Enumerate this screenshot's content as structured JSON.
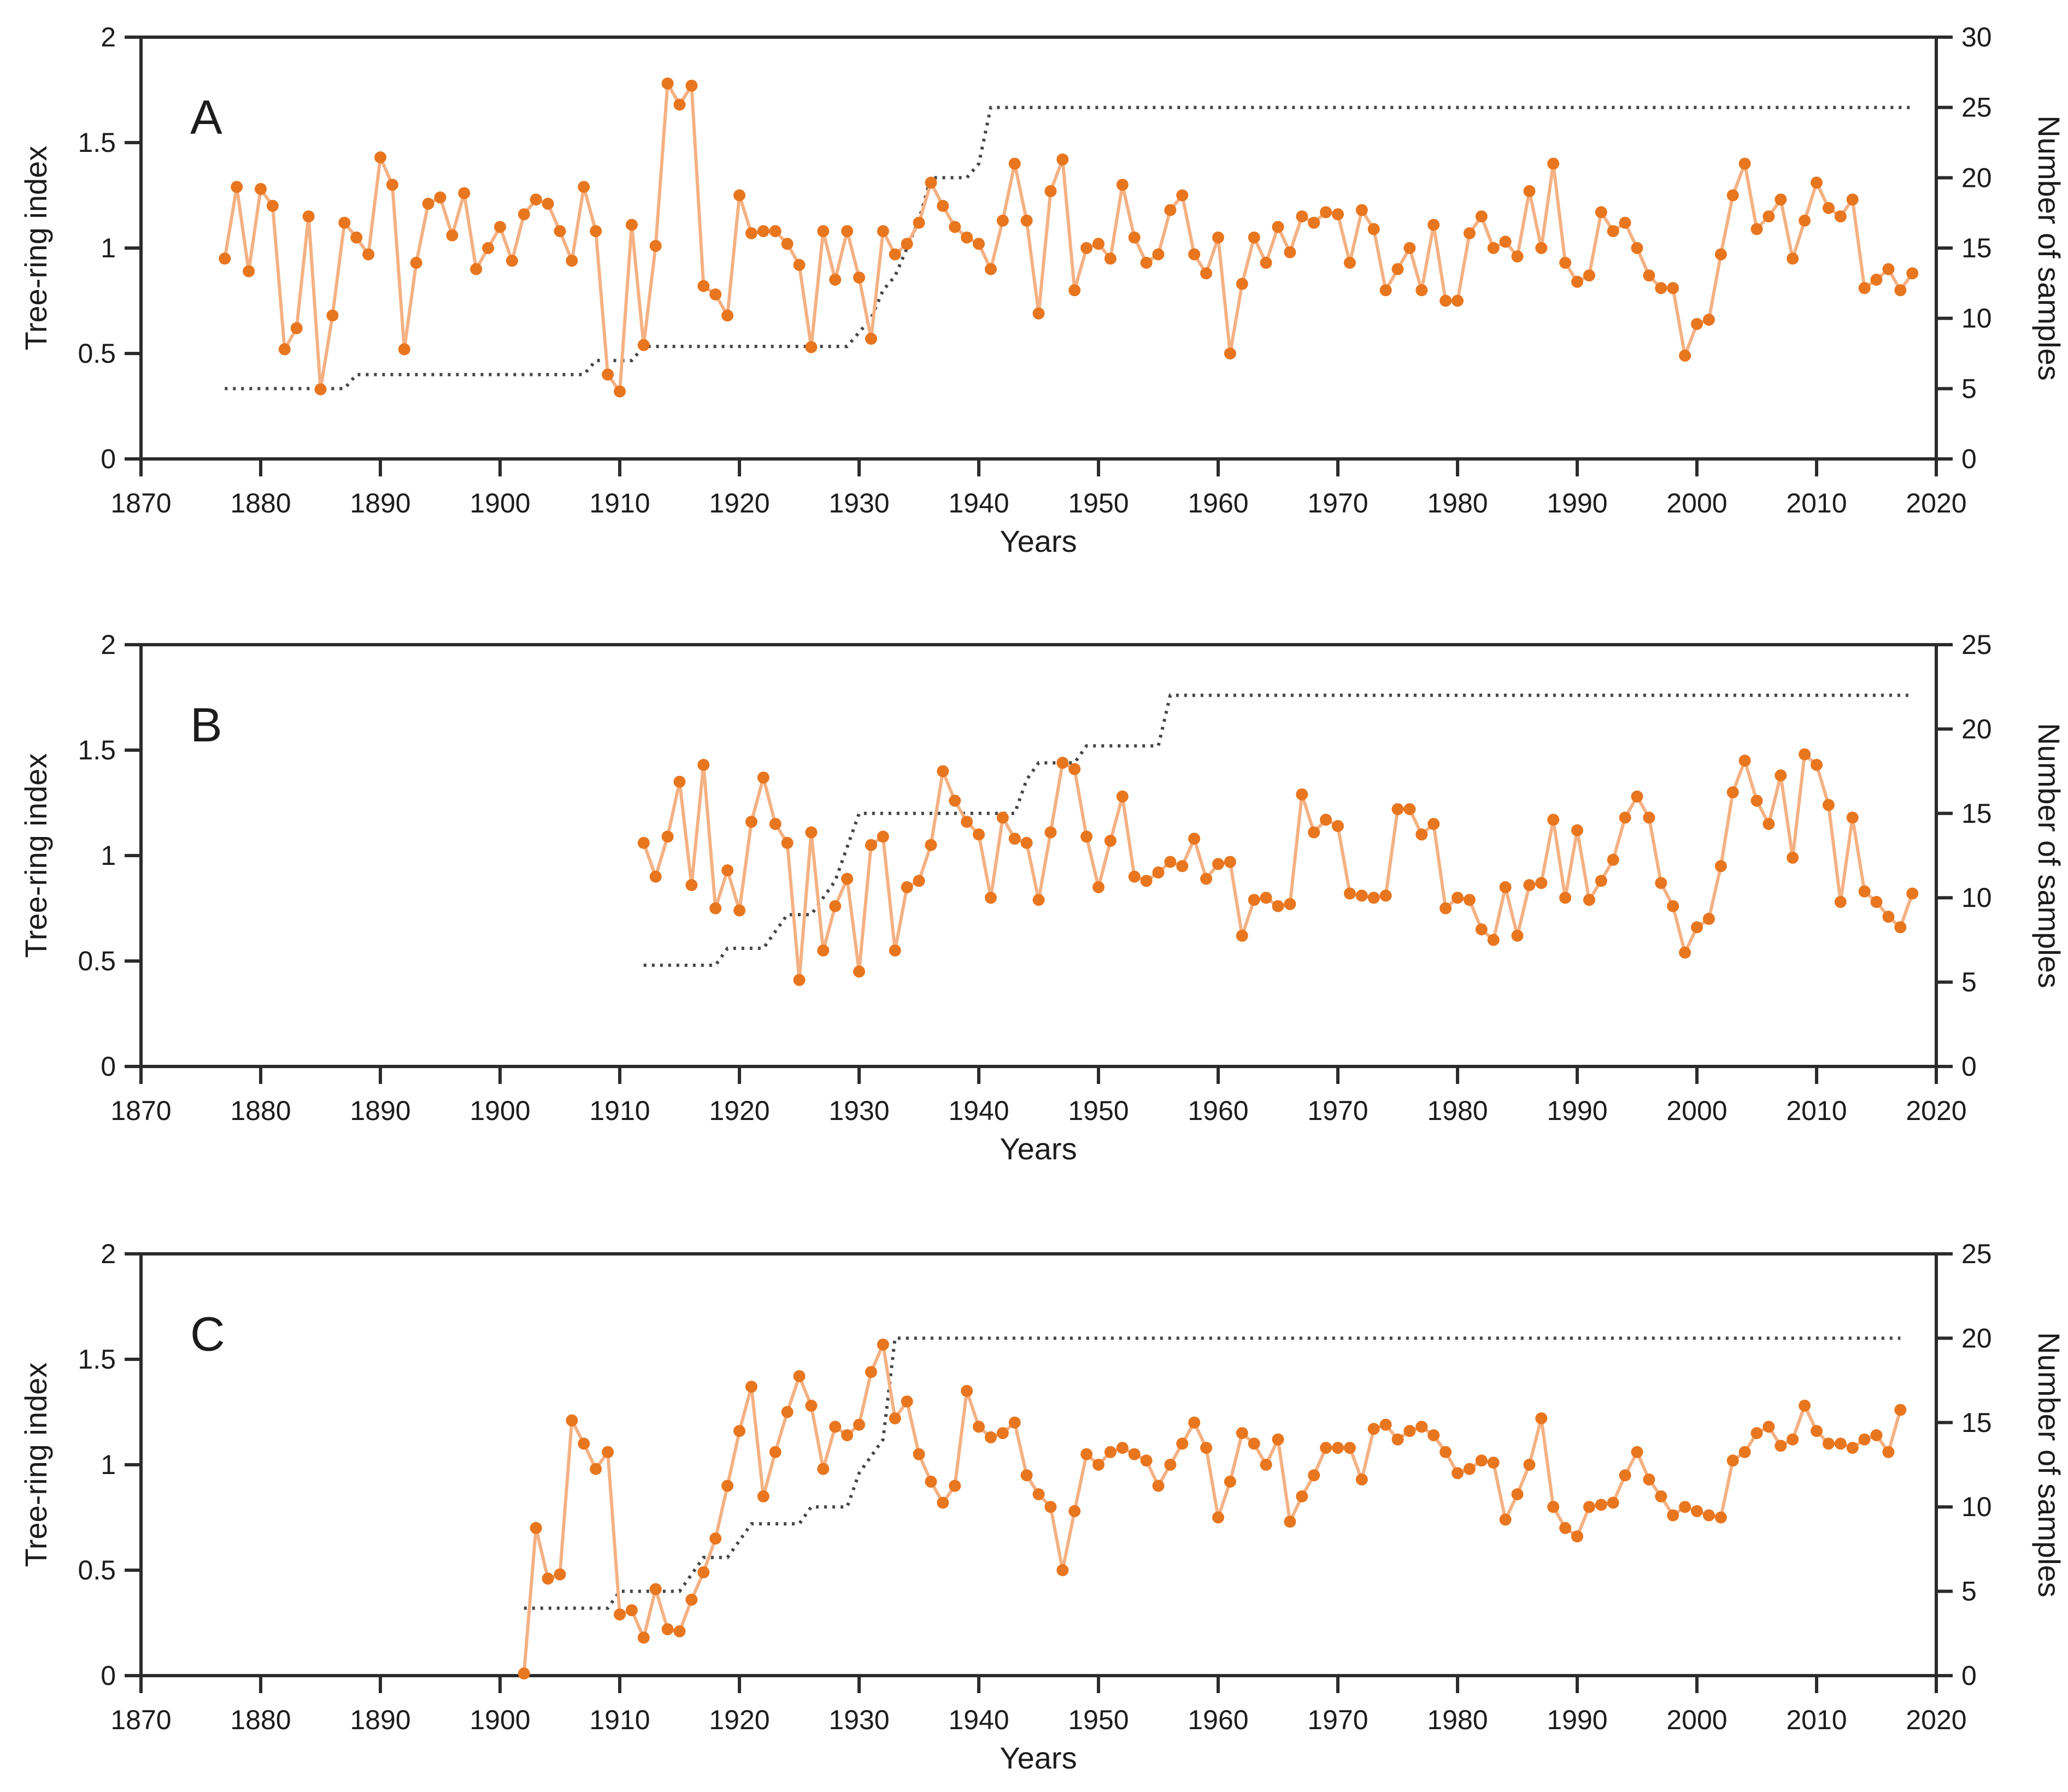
{
  "figure": {
    "background": "#ffffff",
    "axis_color": "#2b2b2b",
    "tree_ring_marker_color": "#e8761f",
    "tree_ring_line_color": "#f4b183",
    "samples_line_color": "#454545",
    "panels_count": 3
  },
  "chart_data": [
    {
      "type": "line",
      "panel_label": "A",
      "xlabel": "Years",
      "ylabel_left": "Tree-ring index",
      "ylabel_right": "Number of samples",
      "xlim": [
        1870,
        2020
      ],
      "x_tick_step": 10,
      "x_ticks": [
        1870,
        1880,
        1890,
        1900,
        1910,
        1920,
        1930,
        1940,
        1950,
        1960,
        1970,
        1980,
        1990,
        2000,
        2010,
        2020
      ],
      "ylim_left": [
        0,
        2
      ],
      "yticks_left": [
        0,
        0.5,
        1,
        1.5,
        2
      ],
      "ylim_right": [
        0,
        30
      ],
      "yticks_right": [
        0,
        5,
        10,
        15,
        20,
        25,
        30
      ],
      "grid": false,
      "legend": "none",
      "series": [
        {
          "name": "Tree-ring index",
          "axis": "left",
          "style": "line+markers",
          "start_year": 1877,
          "values": [
            0.95,
            1.29,
            0.89,
            1.28,
            1.2,
            0.52,
            0.62,
            1.15,
            0.33,
            0.68,
            1.12,
            1.05,
            0.97,
            1.43,
            1.3,
            0.52,
            0.93,
            1.21,
            1.24,
            1.06,
            1.26,
            0.9,
            1.0,
            1.1,
            0.94,
            1.16,
            1.23,
            1.21,
            1.08,
            0.94,
            1.29,
            1.08,
            0.4,
            0.32,
            1.11,
            0.54,
            1.01,
            1.78,
            1.68,
            1.77,
            0.82,
            0.78,
            0.68,
            1.25,
            1.07,
            1.08,
            1.08,
            1.02,
            0.92,
            0.53,
            1.08,
            0.85,
            1.08,
            0.86,
            0.57,
            1.08,
            0.97,
            1.02,
            1.12,
            1.31,
            1.2,
            1.1,
            1.05,
            1.02,
            0.9,
            1.13,
            1.4,
            1.13,
            0.69,
            1.27,
            1.42,
            0.8,
            1.0,
            1.02,
            0.95,
            1.3,
            1.05,
            0.93,
            0.97,
            1.18,
            1.25,
            0.97,
            0.88,
            1.05,
            0.5,
            0.83,
            1.05,
            0.93,
            1.1,
            0.98,
            1.15,
            1.12,
            1.17,
            1.16,
            0.93,
            1.18,
            1.09,
            0.8,
            0.9,
            1.0,
            0.8,
            1.11,
            0.75,
            0.75,
            1.07,
            1.15,
            1.0,
            1.03,
            0.96,
            1.27,
            1.0,
            1.4,
            0.93,
            0.84,
            0.87,
            1.17,
            1.08,
            1.12,
            1.0,
            0.87,
            0.81,
            0.81,
            0.49,
            0.64,
            0.66,
            0.97,
            1.25,
            1.4,
            1.09,
            1.15,
            1.23,
            0.95,
            1.13,
            1.31,
            1.19,
            1.15,
            1.23,
            0.81,
            0.85,
            0.9,
            0.8,
            0.88
          ]
        },
        {
          "name": "Number of samples",
          "axis": "right",
          "style": "dashed-step",
          "start_year": 1877,
          "values": [
            5,
            5,
            5,
            5,
            5,
            5,
            5,
            5,
            5,
            5,
            5,
            6,
            6,
            6,
            6,
            6,
            6,
            6,
            6,
            6,
            6,
            6,
            6,
            6,
            6,
            6,
            6,
            6,
            6,
            6,
            6,
            7,
            7,
            7,
            7,
            8,
            8,
            8,
            8,
            8,
            8,
            8,
            8,
            8,
            8,
            8,
            8,
            8,
            8,
            8,
            8,
            8,
            8,
            9,
            10,
            12,
            13,
            15,
            17,
            20,
            20,
            20,
            20,
            21,
            25,
            25,
            25,
            25,
            25,
            25,
            25,
            25,
            25,
            25,
            25,
            25,
            25,
            25,
            25,
            25,
            25,
            25,
            25,
            25,
            25,
            25,
            25,
            25,
            25,
            25,
            25,
            25,
            25,
            25,
            25,
            25,
            25,
            25,
            25,
            25,
            25,
            25,
            25,
            25,
            25,
            25,
            25,
            25,
            25,
            25,
            25,
            25,
            25,
            25,
            25,
            25,
            25,
            25,
            25,
            25,
            25,
            25,
            25,
            25,
            25,
            25,
            25,
            25,
            25,
            25,
            25,
            25,
            25,
            25,
            25,
            25,
            25,
            25,
            25,
            25,
            25,
            25
          ]
        }
      ]
    },
    {
      "type": "line",
      "panel_label": "B",
      "xlabel": "Years",
      "ylabel_left": "Tree-ring index",
      "ylabel_right": "Number of samples",
      "xlim": [
        1870,
        2020
      ],
      "x_tick_step": 10,
      "x_ticks": [
        1870,
        1880,
        1890,
        1900,
        1910,
        1920,
        1930,
        1940,
        1950,
        1960,
        1970,
        1980,
        1990,
        2000,
        2010,
        2020
      ],
      "ylim_left": [
        0,
        2
      ],
      "yticks_left": [
        0,
        0.5,
        1,
        1.5,
        2
      ],
      "ylim_right": [
        0,
        25
      ],
      "yticks_right": [
        0,
        5,
        10,
        15,
        20,
        25
      ],
      "grid": false,
      "legend": "none",
      "series": [
        {
          "name": "Tree-ring index",
          "axis": "left",
          "style": "line+markers",
          "start_year": 1912,
          "values": [
            1.06,
            0.9,
            1.09,
            1.35,
            0.86,
            1.43,
            0.75,
            0.93,
            0.74,
            1.16,
            1.37,
            1.15,
            1.06,
            0.41,
            1.11,
            0.55,
            0.76,
            0.89,
            0.45,
            1.05,
            1.09,
            0.55,
            0.85,
            0.88,
            1.05,
            1.4,
            1.26,
            1.16,
            1.1,
            0.8,
            1.18,
            1.08,
            1.06,
            0.79,
            1.11,
            1.44,
            1.41,
            1.09,
            0.85,
            1.07,
            1.28,
            0.9,
            0.88,
            0.92,
            0.97,
            0.95,
            1.08,
            0.89,
            0.96,
            0.97,
            0.62,
            0.79,
            0.8,
            0.76,
            0.77,
            1.29,
            1.11,
            1.17,
            1.14,
            0.82,
            0.81,
            0.8,
            0.81,
            1.22,
            1.22,
            1.1,
            1.15,
            0.75,
            0.8,
            0.79,
            0.65,
            0.6,
            0.85,
            0.62,
            0.86,
            0.87,
            1.17,
            0.8,
            1.12,
            0.79,
            0.88,
            0.98,
            1.18,
            1.28,
            1.18,
            0.87,
            0.76,
            0.54,
            0.66,
            0.7,
            0.95,
            1.3,
            1.45,
            1.26,
            1.15,
            1.38,
            0.99,
            1.48,
            1.43,
            1.24,
            0.78,
            1.18,
            0.83,
            0.78,
            0.71,
            0.66,
            0.82
          ]
        },
        {
          "name": "Number of samples",
          "axis": "right",
          "style": "dashed-step",
          "start_year": 1912,
          "values": [
            6,
            6,
            6,
            6,
            6,
            6,
            6,
            7,
            7,
            7,
            7,
            8,
            9,
            9,
            9,
            10,
            11,
            13,
            15,
            15,
            15,
            15,
            15,
            15,
            15,
            15,
            15,
            15,
            15,
            15,
            15,
            15,
            17,
            18,
            18,
            18,
            18,
            19,
            19,
            19,
            19,
            19,
            19,
            19,
            22,
            22,
            22,
            22,
            22,
            22,
            22,
            22,
            22,
            22,
            22,
            22,
            22,
            22,
            22,
            22,
            22,
            22,
            22,
            22,
            22,
            22,
            22,
            22,
            22,
            22,
            22,
            22,
            22,
            22,
            22,
            22,
            22,
            22,
            22,
            22,
            22,
            22,
            22,
            22,
            22,
            22,
            22,
            22,
            22,
            22,
            22,
            22,
            22,
            22,
            22,
            22,
            22,
            22,
            22,
            22,
            22,
            22,
            22,
            22,
            22,
            22,
            22
          ]
        }
      ]
    },
    {
      "type": "line",
      "panel_label": "C",
      "xlabel": "Years",
      "ylabel_left": "Tree-ring index",
      "ylabel_right": "Number of samples",
      "xlim": [
        1870,
        2020
      ],
      "x_tick_step": 10,
      "x_ticks": [
        1870,
        1880,
        1890,
        1900,
        1910,
        1920,
        1930,
        1940,
        1950,
        1960,
        1970,
        1980,
        1990,
        2000,
        2010,
        2020
      ],
      "ylim_left": [
        0,
        2
      ],
      "yticks_left": [
        0,
        0.5,
        1,
        1.5,
        2
      ],
      "ylim_right": [
        0,
        25
      ],
      "yticks_right": [
        0,
        5,
        10,
        15,
        20,
        25
      ],
      "grid": false,
      "legend": "none",
      "series": [
        {
          "name": "Tree-ring index",
          "axis": "left",
          "style": "line+markers",
          "start_year": 1902,
          "values": [
            0.01,
            0.7,
            0.46,
            0.48,
            1.21,
            1.1,
            0.98,
            1.06,
            0.29,
            0.31,
            0.18,
            0.41,
            0.22,
            0.21,
            0.36,
            0.49,
            0.65,
            0.9,
            1.16,
            1.37,
            0.85,
            1.06,
            1.25,
            1.42,
            1.28,
            0.98,
            1.18,
            1.14,
            1.19,
            1.44,
            1.57,
            1.22,
            1.3,
            1.05,
            0.92,
            0.82,
            0.9,
            1.35,
            1.18,
            1.13,
            1.15,
            1.2,
            0.95,
            0.86,
            0.8,
            0.5,
            0.78,
            1.05,
            1.0,
            1.06,
            1.08,
            1.05,
            1.02,
            0.9,
            1.0,
            1.1,
            1.2,
            1.08,
            0.75,
            0.92,
            1.15,
            1.1,
            1.0,
            1.12,
            0.73,
            0.85,
            0.95,
            1.08,
            1.08,
            1.08,
            0.93,
            1.17,
            1.19,
            1.12,
            1.16,
            1.18,
            1.14,
            1.06,
            0.96,
            0.98,
            1.02,
            1.01,
            0.74,
            0.86,
            1.0,
            1.22,
            0.8,
            0.7,
            0.66,
            0.8,
            0.81,
            0.82,
            0.95,
            1.06,
            0.93,
            0.85,
            0.76,
            0.8,
            0.78,
            0.76,
            0.75,
            1.02,
            1.06,
            1.15,
            1.18,
            1.09,
            1.12,
            1.28,
            1.16,
            1.1,
            1.1,
            1.08,
            1.12,
            1.14,
            1.06,
            1.26
          ]
        },
        {
          "name": "Number of samples",
          "axis": "right",
          "style": "dashed-step",
          "start_year": 1902,
          "values": [
            4,
            4,
            4,
            4,
            4,
            4,
            4,
            4,
            5,
            5,
            5,
            5,
            5,
            5,
            6,
            7,
            7,
            7,
            8,
            9,
            9,
            9,
            9,
            9,
            10,
            10,
            10,
            10,
            12,
            13,
            14,
            20,
            20,
            20,
            20,
            20,
            20,
            20,
            20,
            20,
            20,
            20,
            20,
            20,
            20,
            20,
            20,
            20,
            20,
            20,
            20,
            20,
            20,
            20,
            20,
            20,
            20,
            20,
            20,
            20,
            20,
            20,
            20,
            20,
            20,
            20,
            20,
            20,
            20,
            20,
            20,
            20,
            20,
            20,
            20,
            20,
            20,
            20,
            20,
            20,
            20,
            20,
            20,
            20,
            20,
            20,
            20,
            20,
            20,
            20,
            20,
            20,
            20,
            20,
            20,
            20,
            20,
            20,
            20,
            20,
            20,
            20,
            20,
            20,
            20,
            20,
            20,
            20,
            20,
            20,
            20,
            20,
            20,
            20,
            20,
            20
          ]
        }
      ]
    }
  ]
}
